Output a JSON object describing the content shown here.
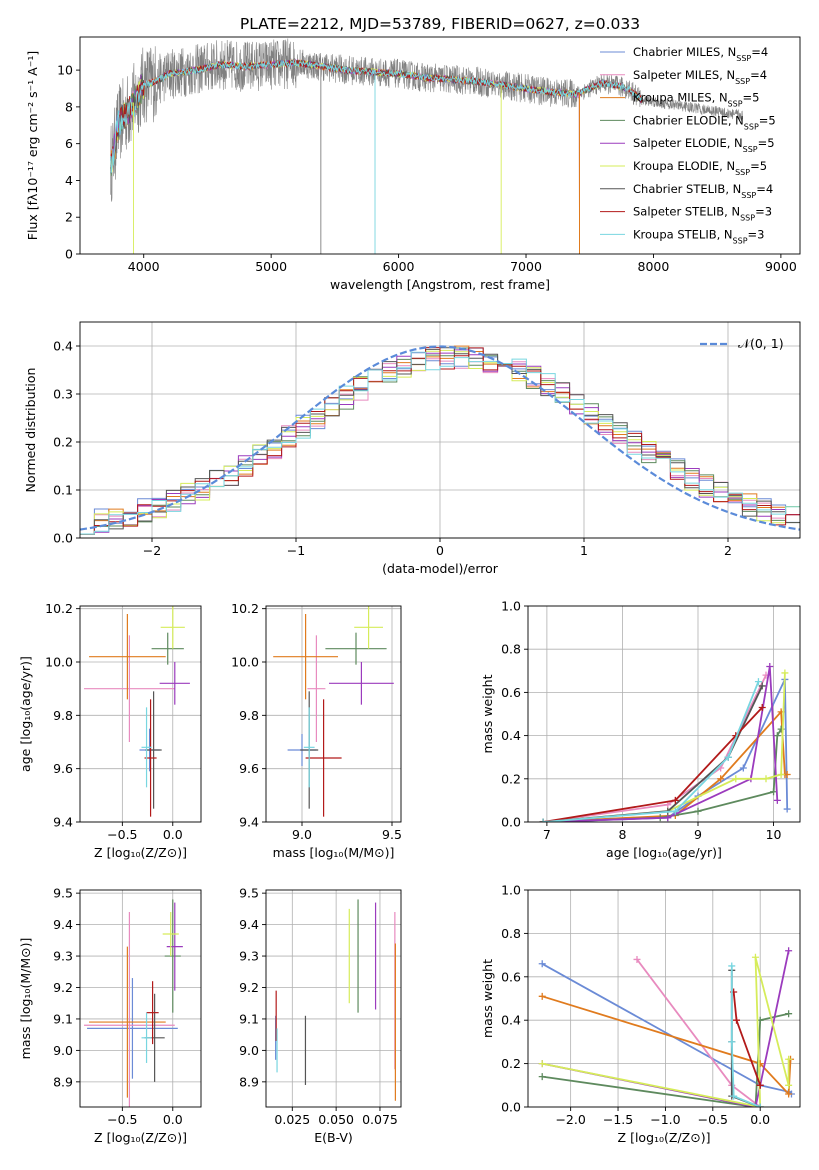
{
  "title": "PLATE=2212, MJD=53789, FIBERID=0627, z=0.033",
  "colors": {
    "Chabrier MILES": "#6b8bd6",
    "Salpeter MILES": "#e88bbf",
    "Kroupa MILES": "#e07b1e",
    "Chabrier ELODIE": "#5e8a5e",
    "Salpeter ELODIE": "#9b3bbd",
    "Kroupa ELODIE": "#d6ec5a",
    "Chabrier STELIB": "#555555",
    "Salpeter STELIB": "#b21a1a",
    "Kroupa STELIB": "#78d6e0",
    "normal": "#5b8bd9",
    "data": "#808080"
  },
  "chart_data": [
    {
      "id": "spectrum",
      "type": "line",
      "xlabel": "wavelength [Angstrom, rest frame]",
      "ylabel": "Flux [fλ10⁻¹⁷ erg cm⁻² s⁻¹ A⁻¹]",
      "xlim": [
        3500,
        9150
      ],
      "ylim": [
        0,
        11.8
      ],
      "xticks": [
        4000,
        5000,
        6000,
        7000,
        8000,
        9000
      ],
      "yticks": [
        0,
        2,
        4,
        6,
        8,
        10
      ],
      "legend_position": "upper right",
      "legend": [
        {
          "label": "Chabrier MILES, N",
          "sub": "SSP",
          "tail": "=4"
        },
        {
          "label": "Salpeter MILES, N",
          "sub": "SSP",
          "tail": "=4"
        },
        {
          "label": "Kroupa MILES, N",
          "sub": "SSP",
          "tail": "=5"
        },
        {
          "label": "Chabrier ELODIE, N",
          "sub": "SSP",
          "tail": "=5"
        },
        {
          "label": "Salpeter ELODIE, N",
          "sub": "SSP",
          "tail": "=5"
        },
        {
          "label": "Kroupa ELODIE, N",
          "sub": "SSP",
          "tail": "=5"
        },
        {
          "label": "Chabrier STELIB, N",
          "sub": "SSP",
          "tail": "=4"
        },
        {
          "label": "Salpeter STELIB, N",
          "sub": "SSP",
          "tail": "=3"
        },
        {
          "label": "Kroupa STELIB, N",
          "sub": "SSP",
          "tail": "=3"
        }
      ],
      "continuum": {
        "x": [
          3750,
          3800,
          3900,
          4000,
          4100,
          4200,
          4400,
          4600,
          4800,
          5000,
          5200,
          5400,
          5600,
          5800,
          6000,
          6200,
          6400,
          6600,
          6800,
          7000,
          7200,
          7400,
          7600,
          7800,
          7900
        ],
        "y": [
          5.0,
          7.0,
          8.0,
          9.2,
          9.4,
          9.8,
          10.0,
          10.3,
          10.2,
          10.3,
          10.4,
          10.2,
          10.0,
          9.9,
          9.8,
          9.6,
          9.5,
          9.4,
          9.2,
          9.0,
          8.8,
          8.7,
          9.3,
          9.0,
          8.4
        ]
      },
      "miles_end": 7420,
      "model_end": 7920,
      "data_end": 8700
    },
    {
      "id": "residuals",
      "type": "histogram",
      "xlabel": "(data-model)/error",
      "ylabel": "Normed distribution",
      "xlim": [
        -2.5,
        2.5
      ],
      "ylim": [
        0,
        0.45
      ],
      "xticks": [
        -2,
        -1,
        0,
        1,
        2
      ],
      "yticks": [
        0.0,
        0.1,
        0.2,
        0.3,
        0.4
      ],
      "bin_width": 0.1,
      "legend": "𝒩(0, 1)",
      "legend_position": "upper right"
    },
    {
      "id": "age-Z",
      "type": "scatter",
      "xlabel": "Z [log₁₀(Z/Z⊙)]",
      "ylabel": "age  [log₁₀(age/yr)]",
      "xlim": [
        -0.92,
        0.28
      ],
      "ylim": [
        9.4,
        10.21
      ],
      "xticks": [
        -0.5,
        0.0
      ],
      "yticks": [
        9.4,
        9.6,
        9.8,
        10.0,
        10.2
      ],
      "points": [
        {
          "model": "Chabrier MILES",
          "x": -0.23,
          "y": 9.67,
          "xerr": 0.1,
          "yerr": 0.08
        },
        {
          "model": "Salpeter MILES",
          "x": -0.43,
          "y": 9.9,
          "xerr": 0.45,
          "yerr": 0.2
        },
        {
          "model": "Kroupa MILES",
          "x": -0.45,
          "y": 10.02,
          "xerr": 0.38,
          "yerr": 0.16
        },
        {
          "model": "Chabrier ELODIE",
          "x": -0.05,
          "y": 10.05,
          "xerr": 0.16,
          "yerr": 0.06
        },
        {
          "model": "Salpeter ELODIE",
          "x": 0.02,
          "y": 9.92,
          "xerr": 0.15,
          "yerr": 0.08
        },
        {
          "model": "Kroupa ELODIE",
          "x": 0.0,
          "y": 10.13,
          "xerr": 0.12,
          "yerr": 0.08
        },
        {
          "model": "Chabrier STELIB",
          "x": -0.19,
          "y": 9.67,
          "xerr": 0.08,
          "yerr": 0.22
        },
        {
          "model": "Salpeter STELIB",
          "x": -0.22,
          "y": 9.64,
          "xerr": 0.06,
          "yerr": 0.22
        },
        {
          "model": "Kroupa STELIB",
          "x": -0.26,
          "y": 9.68,
          "xerr": 0.05,
          "yerr": 0.15
        }
      ]
    },
    {
      "id": "age-mass",
      "type": "scatter",
      "xlabel": "mass [log₁₀(M/M⊙)]",
      "ylabel": "",
      "xlim": [
        8.8,
        9.55
      ],
      "ylim": [
        9.4,
        10.21
      ],
      "xticks": [
        9.0,
        9.5
      ],
      "yticks": [
        9.4,
        9.6,
        9.8,
        10.0,
        10.2
      ],
      "points": [
        {
          "model": "Chabrier MILES",
          "x": 9.0,
          "y": 9.67,
          "xerr": 0.08,
          "yerr": 0.06
        },
        {
          "model": "Salpeter MILES",
          "x": 9.08,
          "y": 9.9,
          "xerr": 0.05,
          "yerr": 0.2
        },
        {
          "model": "Kroupa MILES",
          "x": 9.02,
          "y": 10.02,
          "xerr": 0.18,
          "yerr": 0.16
        },
        {
          "model": "Chabrier ELODIE",
          "x": 9.3,
          "y": 10.05,
          "xerr": 0.17,
          "yerr": 0.06
        },
        {
          "model": "Salpeter ELODIE",
          "x": 9.33,
          "y": 9.92,
          "xerr": 0.18,
          "yerr": 0.08
        },
        {
          "model": "Kroupa ELODIE",
          "x": 9.37,
          "y": 10.13,
          "xerr": 0.08,
          "yerr": 0.08
        },
        {
          "model": "Chabrier STELIB",
          "x": 9.04,
          "y": 9.67,
          "xerr": 0.05,
          "yerr": 0.22
        },
        {
          "model": "Salpeter STELIB",
          "x": 9.12,
          "y": 9.64,
          "xerr": 0.1,
          "yerr": 0.22
        },
        {
          "model": "Kroupa STELIB",
          "x": 9.04,
          "y": 9.68,
          "xerr": 0.03,
          "yerr": 0.15
        }
      ]
    },
    {
      "id": "weight-age",
      "type": "line",
      "xlabel": "age  [log₁₀(age/yr)]",
      "ylabel": "mass weight",
      "xlim": [
        6.75,
        10.35
      ],
      "ylim": [
        0,
        1.0
      ],
      "xticks": [
        7,
        8,
        9,
        10
      ],
      "yticks": [
        0.0,
        0.2,
        0.4,
        0.6,
        0.8,
        1.0
      ],
      "series": [
        {
          "model": "Chabrier MILES",
          "x": [
            6.95,
            8.6,
            9.0,
            9.6,
            10.15,
            10.18
          ],
          "y": [
            0.0,
            0.02,
            0.12,
            0.25,
            0.66,
            0.06
          ]
        },
        {
          "model": "Salpeter MILES",
          "x": [
            6.95,
            8.6,
            9.3,
            9.9
          ],
          "y": [
            0.0,
            0.08,
            0.25,
            0.68
          ]
        },
        {
          "model": "Kroupa MILES",
          "x": [
            6.95,
            8.7,
            9.3,
            10.1,
            10.15,
            10.18
          ],
          "y": [
            0.0,
            0.03,
            0.2,
            0.51,
            0.22,
            0.22
          ]
        },
        {
          "model": "Chabrier ELODIE",
          "x": [
            6.95,
            8.5,
            9.0,
            10.0,
            10.05,
            10.1
          ],
          "y": [
            0.0,
            0.02,
            0.05,
            0.14,
            0.4,
            0.43
          ]
        },
        {
          "model": "Salpeter ELODIE",
          "x": [
            6.95,
            8.6,
            9.7,
            9.95,
            10.05
          ],
          "y": [
            0.0,
            0.02,
            0.2,
            0.72,
            0.1
          ]
        },
        {
          "model": "Kroupa ELODIE",
          "x": [
            6.95,
            8.6,
            9.5,
            9.9,
            10.1,
            10.15
          ],
          "y": [
            0.0,
            0.05,
            0.2,
            0.2,
            0.22,
            0.69
          ]
        },
        {
          "model": "Chabrier STELIB",
          "x": [
            6.95,
            8.6,
            9.4,
            9.85
          ],
          "y": [
            0.0,
            0.05,
            0.3,
            0.63
          ]
        },
        {
          "model": "Salpeter STELIB",
          "x": [
            6.95,
            8.7,
            9.5,
            9.85
          ],
          "y": [
            0.0,
            0.1,
            0.4,
            0.53
          ]
        },
        {
          "model": "Kroupa STELIB",
          "x": [
            6.95,
            8.7,
            9.4,
            9.8
          ],
          "y": [
            0.0,
            0.05,
            0.3,
            0.65
          ]
        }
      ]
    },
    {
      "id": "mass-Z",
      "type": "scatter",
      "xlabel": "Z [log₁₀(Z/Z⊙)]",
      "ylabel": "mass [log₁₀(M/M⊙)]",
      "xlim": [
        -0.92,
        0.28
      ],
      "ylim": [
        8.82,
        9.51
      ],
      "xticks": [
        -0.5,
        0.0
      ],
      "yticks": [
        8.9,
        9.0,
        9.1,
        9.2,
        9.3,
        9.4,
        9.5
      ],
      "points": [
        {
          "model": "Chabrier MILES",
          "x": -0.4,
          "y": 9.07,
          "xerr": 0.45,
          "yerr": 0.16
        },
        {
          "model": "Salpeter MILES",
          "x": -0.43,
          "y": 9.08,
          "xerr": 0.45,
          "yerr": 0.36
        },
        {
          "model": "Kroupa MILES",
          "x": -0.45,
          "y": 9.09,
          "xerr": 0.38,
          "yerr": 0.24
        },
        {
          "model": "Chabrier ELODIE",
          "x": 0.0,
          "y": 9.3,
          "xerr": 0.08,
          "yerr": 0.18
        },
        {
          "model": "Salpeter ELODIE",
          "x": 0.02,
          "y": 9.33,
          "xerr": 0.08,
          "yerr": 0.14
        },
        {
          "model": "Kroupa ELODIE",
          "x": -0.02,
          "y": 9.37,
          "xerr": 0.08,
          "yerr": 0.07
        },
        {
          "model": "Chabrier STELIB",
          "x": -0.18,
          "y": 9.04,
          "xerr": 0.1,
          "yerr": 0.14
        },
        {
          "model": "Salpeter STELIB",
          "x": -0.2,
          "y": 9.12,
          "xerr": 0.06,
          "yerr": 0.1
        },
        {
          "model": "Kroupa STELIB",
          "x": -0.26,
          "y": 9.04,
          "xerr": 0.05,
          "yerr": 0.08
        }
      ]
    },
    {
      "id": "mass-ebv",
      "type": "scatter",
      "xlabel": "E(B-V)",
      "ylabel": "",
      "xlim": [
        0.01,
        0.087
      ],
      "ylim": [
        8.82,
        9.51
      ],
      "xticks": [
        0.025,
        0.05,
        0.075
      ],
      "yticks": [
        8.9,
        9.0,
        9.1,
        9.2,
        9.3,
        9.4,
        9.5
      ],
      "points": [
        {
          "model": "Chabrier MILES",
          "x": 0.0155,
          "y": 9.04,
          "xerr": 0,
          "yerr": 0.07
        },
        {
          "model": "Salpeter MILES",
          "x": 0.0835,
          "y": 9.19,
          "xerr": 0,
          "yerr": 0.25
        },
        {
          "model": "Kroupa MILES",
          "x": 0.0838,
          "y": 9.09,
          "xerr": 0,
          "yerr": 0.25
        },
        {
          "model": "Chabrier ELODIE",
          "x": 0.0625,
          "y": 9.3,
          "xerr": 0,
          "yerr": 0.18
        },
        {
          "model": "Salpeter ELODIE",
          "x": 0.0725,
          "y": 9.3,
          "xerr": 0,
          "yerr": 0.17
        },
        {
          "model": "Kroupa ELODIE",
          "x": 0.0575,
          "y": 9.3,
          "xerr": 0,
          "yerr": 0.15
        },
        {
          "model": "Chabrier STELIB",
          "x": 0.0325,
          "y": 9.0,
          "xerr": 0,
          "yerr": 0.11
        },
        {
          "model": "Salpeter STELIB",
          "x": 0.0158,
          "y": 9.11,
          "xerr": 0,
          "yerr": 0.08
        },
        {
          "model": "Kroupa STELIB",
          "x": 0.0163,
          "y": 9.0,
          "xerr": 0,
          "yerr": 0.07
        }
      ]
    },
    {
      "id": "weight-Z",
      "type": "line",
      "xlabel": "Z [log₁₀(Z/Z⊙)]",
      "ylabel": "mass weight",
      "xlim": [
        -2.45,
        0.42
      ],
      "ylim": [
        0,
        1.0
      ],
      "xticks": [
        -2.0,
        -1.5,
        -1.0,
        -0.5,
        0.0
      ],
      "yticks": [
        0.0,
        0.2,
        0.4,
        0.6,
        0.8,
        1.0
      ],
      "series": [
        {
          "model": "Chabrier MILES",
          "x": [
            -2.3,
            0.0,
            0.3,
            0.33
          ],
          "y": [
            0.66,
            0.1,
            0.07,
            0.06
          ]
        },
        {
          "model": "Salpeter MILES",
          "x": [
            -1.3,
            -0.3,
            0.0
          ],
          "y": [
            0.68,
            0.1,
            0.0
          ]
        },
        {
          "model": "Kroupa MILES",
          "x": [
            -2.3,
            0.0,
            0.3,
            0.32
          ],
          "y": [
            0.51,
            0.2,
            0.06,
            0.22
          ]
        },
        {
          "model": "Chabrier ELODIE",
          "x": [
            -2.3,
            -0.05,
            0.0,
            0.3
          ],
          "y": [
            0.14,
            0.0,
            0.4,
            0.43
          ]
        },
        {
          "model": "Salpeter ELODIE",
          "x": [
            -2.3,
            -0.05,
            0.0,
            0.3
          ],
          "y": [
            0.2,
            0.0,
            0.1,
            0.72
          ]
        },
        {
          "model": "Kroupa ELODIE",
          "x": [
            -2.3,
            0.0,
            -0.05,
            0.3,
            0.3
          ],
          "y": [
            0.2,
            0.0,
            0.69,
            0.1,
            0.22
          ]
        },
        {
          "model": "Chabrier STELIB",
          "x": [
            -0.3,
            -0.3,
            -0.3,
            0.0
          ],
          "y": [
            0.63,
            0.3,
            0.05,
            0.0
          ]
        },
        {
          "model": "Salpeter STELIB",
          "x": [
            -0.28,
            -0.25,
            0.0
          ],
          "y": [
            0.53,
            0.4,
            0.1
          ]
        },
        {
          "model": "Kroupa STELIB",
          "x": [
            -0.3,
            -0.3,
            -0.28,
            0.0
          ],
          "y": [
            0.65,
            0.3,
            0.05,
            0.0
          ]
        }
      ]
    }
  ]
}
